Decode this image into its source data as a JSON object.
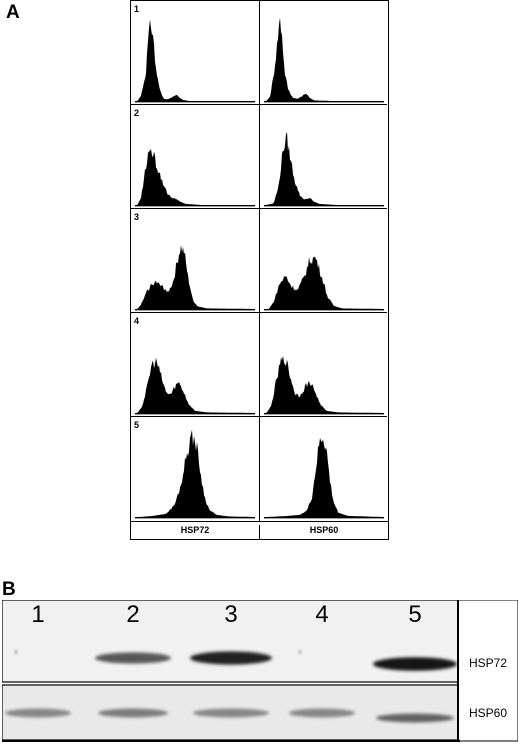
{
  "panel_a": {
    "letter": "A",
    "rows": [
      {
        "label": "1",
        "hsp72": [
          [
            0.02,
            0.2
          ],
          [
            0.05,
            1.2
          ],
          [
            0.09,
            5.5
          ],
          [
            0.11,
            12
          ],
          [
            0.13,
            15
          ],
          [
            0.15,
            13
          ],
          [
            0.17,
            7
          ],
          [
            0.2,
            3
          ],
          [
            0.22,
            1.5
          ],
          [
            0.24,
            0.6
          ],
          [
            0.27,
            0.5
          ],
          [
            0.31,
            0.9
          ],
          [
            0.34,
            1.5
          ],
          [
            0.36,
            1
          ],
          [
            0.4,
            0.4
          ],
          [
            0.45,
            0.2
          ],
          [
            0.6,
            0.2
          ],
          [
            0.98,
            0.2
          ]
        ],
        "hsp60": [
          [
            0.02,
            0.2
          ],
          [
            0.05,
            1
          ],
          [
            0.08,
            5
          ],
          [
            0.11,
            11
          ],
          [
            0.13,
            16
          ],
          [
            0.15,
            13
          ],
          [
            0.17,
            6
          ],
          [
            0.2,
            2.5
          ],
          [
            0.24,
            0.8
          ],
          [
            0.28,
            0.6
          ],
          [
            0.32,
            1.2
          ],
          [
            0.35,
            1.6
          ],
          [
            0.38,
            0.8
          ],
          [
            0.42,
            0.3
          ],
          [
            0.55,
            0.2
          ],
          [
            0.98,
            0.2
          ]
        ]
      },
      {
        "label": "2",
        "hsp72": [
          [
            0.02,
            0.2
          ],
          [
            0.05,
            1.5
          ],
          [
            0.08,
            6
          ],
          [
            0.12,
            11
          ],
          [
            0.15,
            10
          ],
          [
            0.19,
            7
          ],
          [
            0.23,
            4.5
          ],
          [
            0.27,
            2.5
          ],
          [
            0.3,
            1.5
          ],
          [
            0.34,
            1.4
          ],
          [
            0.37,
            0.9
          ],
          [
            0.42,
            0.4
          ],
          [
            0.55,
            0.2
          ],
          [
            0.98,
            0.2
          ]
        ],
        "hsp60": [
          [
            0.02,
            0.2
          ],
          [
            0.08,
            0.5
          ],
          [
            0.12,
            3.5
          ],
          [
            0.16,
            11
          ],
          [
            0.19,
            13
          ],
          [
            0.22,
            9
          ],
          [
            0.26,
            4.5
          ],
          [
            0.3,
            2
          ],
          [
            0.34,
            1.2
          ],
          [
            0.38,
            1.6
          ],
          [
            0.41,
            0.9
          ],
          [
            0.46,
            0.4
          ],
          [
            0.6,
            0.2
          ],
          [
            0.98,
            0.2
          ]
        ]
      },
      {
        "label": "3",
        "hsp72": [
          [
            0.02,
            0.2
          ],
          [
            0.05,
            1
          ],
          [
            0.1,
            3.5
          ],
          [
            0.16,
            5.5
          ],
          [
            0.22,
            4.5
          ],
          [
            0.28,
            3.5
          ],
          [
            0.32,
            5.5
          ],
          [
            0.35,
            9
          ],
          [
            0.38,
            12
          ],
          [
            0.41,
            11
          ],
          [
            0.44,
            6.5
          ],
          [
            0.48,
            2
          ],
          [
            0.52,
            0.7
          ],
          [
            0.6,
            0.3
          ],
          [
            0.98,
            0.2
          ]
        ],
        "hsp60": [
          [
            0.04,
            0.2
          ],
          [
            0.08,
            1.5
          ],
          [
            0.13,
            5
          ],
          [
            0.18,
            6.5
          ],
          [
            0.23,
            4.5
          ],
          [
            0.28,
            3.8
          ],
          [
            0.33,
            6
          ],
          [
            0.38,
            9.5
          ],
          [
            0.43,
            10
          ],
          [
            0.48,
            6.5
          ],
          [
            0.53,
            2.5
          ],
          [
            0.58,
            0.8
          ],
          [
            0.65,
            0.3
          ],
          [
            0.98,
            0.2
          ]
        ]
      },
      {
        "label": "4",
        "hsp72": [
          [
            0.02,
            0.2
          ],
          [
            0.06,
            1.5
          ],
          [
            0.1,
            5
          ],
          [
            0.14,
            9.5
          ],
          [
            0.18,
            10
          ],
          [
            0.22,
            7
          ],
          [
            0.26,
            4
          ],
          [
            0.3,
            3.8
          ],
          [
            0.34,
            5.5
          ],
          [
            0.37,
            6
          ],
          [
            0.41,
            4
          ],
          [
            0.45,
            1.8
          ],
          [
            0.5,
            0.6
          ],
          [
            0.6,
            0.3
          ],
          [
            0.98,
            0.2
          ]
        ],
        "hsp60": [
          [
            0.02,
            0.2
          ],
          [
            0.06,
            1.5
          ],
          [
            0.1,
            6
          ],
          [
            0.14,
            10
          ],
          [
            0.18,
            10.5
          ],
          [
            0.22,
            7
          ],
          [
            0.26,
            3.8
          ],
          [
            0.3,
            3.5
          ],
          [
            0.35,
            5.5
          ],
          [
            0.39,
            6
          ],
          [
            0.43,
            4
          ],
          [
            0.47,
            1.8
          ],
          [
            0.52,
            0.6
          ],
          [
            0.62,
            0.3
          ],
          [
            0.98,
            0.2
          ]
        ]
      },
      {
        "label": "5",
        "hsp72": [
          [
            0.04,
            0.2
          ],
          [
            0.15,
            0.4
          ],
          [
            0.26,
            0.8
          ],
          [
            0.33,
            2.5
          ],
          [
            0.38,
            6
          ],
          [
            0.42,
            11
          ],
          [
            0.46,
            15
          ],
          [
            0.49,
            15.5
          ],
          [
            0.52,
            13
          ],
          [
            0.55,
            8
          ],
          [
            0.58,
            4
          ],
          [
            0.62,
            1.5
          ],
          [
            0.68,
            0.6
          ],
          [
            0.78,
            0.3
          ],
          [
            0.98,
            0.2
          ]
        ],
        "hsp60": [
          [
            0.04,
            0.2
          ],
          [
            0.2,
            0.4
          ],
          [
            0.3,
            0.6
          ],
          [
            0.36,
            1.5
          ],
          [
            0.4,
            4
          ],
          [
            0.43,
            9
          ],
          [
            0.46,
            14
          ],
          [
            0.49,
            15.5
          ],
          [
            0.52,
            13
          ],
          [
            0.55,
            7
          ],
          [
            0.58,
            3
          ],
          [
            0.62,
            1
          ],
          [
            0.7,
            0.4
          ],
          [
            0.98,
            0.2
          ]
        ]
      }
    ],
    "columns": [
      "HSP72",
      "HSP60"
    ]
  },
  "panel_b": {
    "letter": "B",
    "lanes": [
      "1",
      "2",
      "3",
      "4",
      "5"
    ],
    "hsp72_intensity": [
      0,
      0.65,
      0.9,
      0.05,
      0.95
    ],
    "hsp60_intensity": [
      0.45,
      0.5,
      0.45,
      0.45,
      0.6
    ],
    "band_labels": [
      "HSP72",
      "HSP60"
    ]
  }
}
